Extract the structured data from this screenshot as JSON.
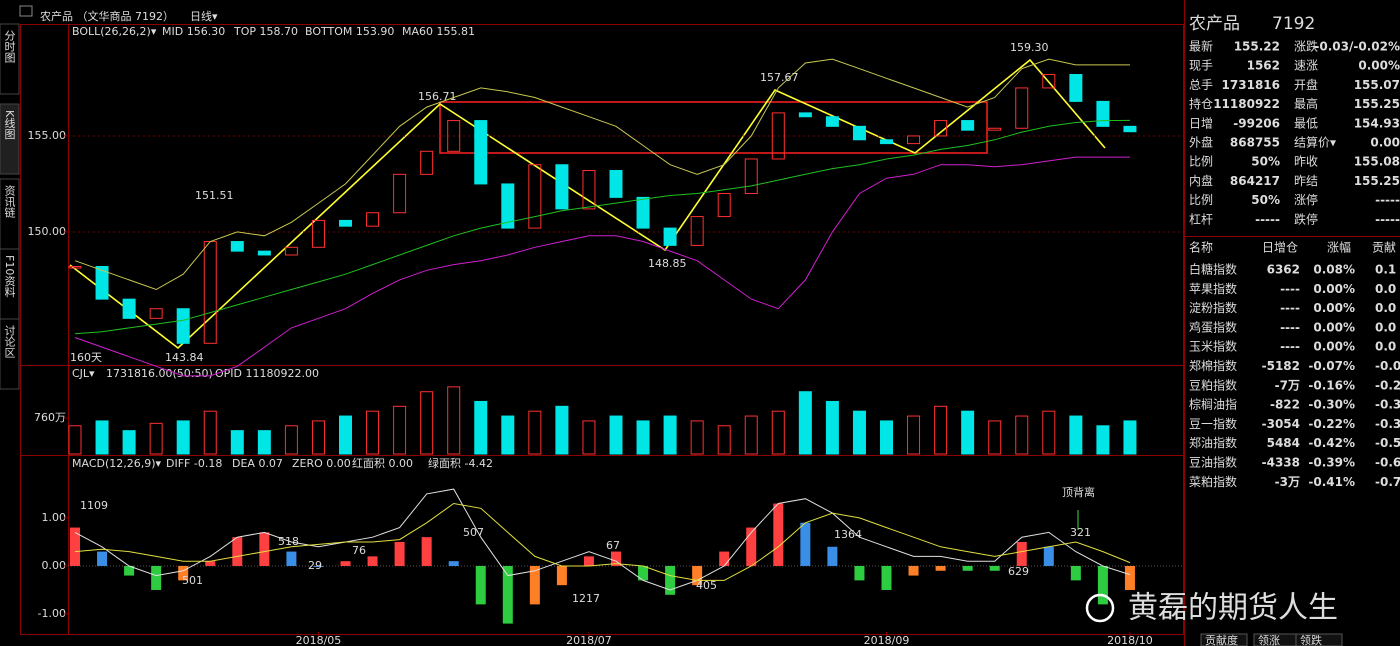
{
  "header": {
    "title": "农产品 （文华商品 7192）",
    "period": "日线▾"
  },
  "sidebar": [
    "分时图",
    "K线图",
    "资讯链",
    "F10资料",
    "讨论区"
  ],
  "chart_data": [
    {
      "type": "candlestick",
      "legend": [
        "BOLL(26,26,2)▾",
        "MID 156.30",
        "TOP 158.70",
        "BOTTOM 153.90",
        "MA60 155.81"
      ],
      "up_color": "#ff3030",
      "down_color": "#00e5e5",
      "values": [
        148.2,
        146.5,
        145.5,
        146.0,
        144.2,
        149.5,
        149.0,
        148.8,
        149.2,
        150.6,
        150.3,
        151.0,
        153.0,
        154.2,
        155.8,
        152.5,
        150.2,
        153.5,
        151.2,
        153.2,
        151.8,
        150.2,
        149.3,
        150.8,
        152.0,
        153.8,
        156.2,
        156.0,
        155.5,
        154.8,
        154.6,
        155.0,
        155.8,
        155.3,
        155.4,
        157.5,
        158.2,
        156.8,
        155.5,
        155.22
      ],
      "series": [
        {
          "color": "#c8c850",
          "values": [
            148.5,
            148.0,
            147.5,
            147.0,
            147.8,
            149.5,
            150.0,
            149.8,
            150.5,
            151.5,
            152.5,
            154.0,
            155.5,
            156.5,
            157.0,
            157.5,
            157.3,
            157.0,
            156.5,
            156.0,
            155.5,
            154.5,
            153.5,
            153.0,
            153.5,
            155.0,
            157.5,
            158.8,
            159.0,
            158.5,
            158.0,
            157.5,
            157.0,
            156.5,
            157.0,
            158.5,
            159.0,
            158.7,
            158.7,
            158.7
          ]
        },
        {
          "color": "#d020d0",
          "values": [
            144.5,
            144.0,
            143.5,
            143.0,
            142.5,
            142.5,
            143.0,
            144.0,
            145.0,
            145.5,
            146.0,
            146.8,
            147.5,
            148.0,
            148.3,
            148.5,
            148.8,
            149.2,
            149.5,
            149.8,
            149.8,
            149.5,
            149.0,
            148.5,
            147.5,
            146.5,
            146.0,
            147.5,
            150.0,
            152.0,
            152.8,
            153.0,
            153.5,
            153.5,
            153.4,
            153.5,
            153.7,
            153.9,
            153.9,
            153.9
          ]
        },
        {
          "color": "#20c020",
          "values": [
            144.7,
            144.8,
            145.0,
            145.2,
            145.4,
            145.8,
            146.2,
            146.6,
            147.0,
            147.4,
            147.8,
            148.3,
            148.8,
            149.3,
            149.8,
            150.2,
            150.5,
            150.8,
            151.1,
            151.3,
            151.5,
            151.7,
            151.9,
            152.0,
            152.2,
            152.4,
            152.7,
            153.0,
            153.3,
            153.5,
            153.8,
            154.0,
            154.3,
            154.5,
            154.8,
            155.2,
            155.5,
            155.7,
            155.8,
            155.81
          ]
        }
      ],
      "annotations": [
        {
          "text": "156.71",
          "color": "#ff4040"
        },
        {
          "text": "151.51",
          "color": "#ff4040"
        },
        {
          "text": "157.67",
          "color": "#ff4040"
        },
        {
          "text": "159.30",
          "color": "#ff4040"
        },
        {
          "text": "143.84",
          "color": "#00e5e5"
        },
        {
          "text": "148.85",
          "color": "#00e5e5"
        },
        {
          "text": "160天",
          "color": "#ffff40"
        }
      ],
      "ylim": [
        143.07,
        160.83
      ],
      "yticks": [
        {
          "value": 155,
          "label": "155.00"
        },
        {
          "value": 150,
          "label": "150.00"
        }
      ],
      "grid": true
    },
    {
      "type": "bar",
      "legend": [
        "CJL▾",
        "1731816.00(50:50)",
        "OPID 11180922.00"
      ],
      "values": [
        600,
        700,
        500,
        650,
        700,
        900,
        500,
        500,
        600,
        700,
        800,
        900,
        1000,
        1300,
        1400,
        1100,
        800,
        900,
        1000,
        700,
        800,
        700,
        800,
        700,
        600,
        800,
        900,
        1300,
        1100,
        900,
        700,
        800,
        1000,
        900,
        700,
        800,
        900,
        800,
        600,
        700
      ],
      "ylim": [
        0,
        1828
      ],
      "yticks": [
        {
          "value": 760,
          "label": "760万"
        }
      ],
      "grid": false
    },
    {
      "type": "macd",
      "legend": [
        "MACD(12,26,9)▾",
        "DIFF -0.18",
        "DEA 0.07",
        "ZERO 0.00",
        "红面积 0.00",
        "绿面积 -4.42"
      ],
      "colors": {
        "up_rise": "#ff4040",
        "up_fall": "#3a8ee6",
        "down_fall": "#2ecc40",
        "down_rise": "#ff7f27"
      },
      "categories": [
        null,
        null,
        null,
        null,
        null,
        null,
        null,
        null,
        null,
        "2018/05",
        null,
        null,
        null,
        null,
        null,
        null,
        null,
        null,
        null,
        "2018/07",
        null,
        null,
        null,
        null,
        null,
        null,
        null,
        null,
        null,
        null,
        "2018/09",
        null,
        null,
        null,
        null,
        null,
        null,
        null,
        null,
        "2018/10"
      ],
      "values": [
        0.8,
        0.3,
        -0.2,
        -0.5,
        -0.3,
        0.1,
        0.6,
        0.7,
        0.3,
        0.0,
        0.1,
        0.2,
        0.5,
        0.6,
        0.1,
        -0.8,
        -1.2,
        -0.8,
        -0.4,
        0.2,
        0.3,
        -0.3,
        -0.6,
        -0.4,
        0.3,
        0.8,
        1.3,
        0.9,
        0.4,
        -0.3,
        -0.5,
        -0.2,
        -0.1,
        -0.1,
        -0.1,
        0.5,
        0.4,
        -0.3,
        -0.8,
        -0.5
      ],
      "series": [
        {
          "name": "DIFF",
          "color": "#e0e0e0",
          "values": [
            0.7,
            0.4,
            0.0,
            -0.2,
            -0.1,
            0.2,
            0.6,
            0.7,
            0.5,
            0.4,
            0.5,
            0.6,
            0.8,
            1.5,
            1.6,
            0.6,
            -0.2,
            -0.1,
            0.1,
            0.3,
            0.1,
            -0.3,
            -0.5,
            -0.3,
            0.0,
            0.7,
            1.3,
            1.4,
            1.1,
            0.6,
            0.4,
            0.2,
            0.2,
            0.1,
            0.1,
            0.6,
            0.7,
            0.3,
            0.0,
            -0.18
          ]
        },
        {
          "name": "DEA",
          "color": "#e0e040",
          "values": [
            0.3,
            0.35,
            0.3,
            0.2,
            0.1,
            0.1,
            0.2,
            0.3,
            0.4,
            0.45,
            0.5,
            0.5,
            0.55,
            0.9,
            1.3,
            1.2,
            0.7,
            0.2,
            0.0,
            0.0,
            0.05,
            0.0,
            -0.2,
            -0.3,
            -0.3,
            0.0,
            0.4,
            0.9,
            1.1,
            1.0,
            0.8,
            0.6,
            0.4,
            0.3,
            0.2,
            0.3,
            0.4,
            0.5,
            0.3,
            0.07
          ]
        }
      ],
      "annotations": [
        {
          "text": "1109",
          "color": "#e040e0"
        },
        {
          "text": "518",
          "color": "#e040e0"
        },
        {
          "text": "76",
          "color": "#e040e0"
        },
        {
          "text": "507",
          "color": "#e040e0"
        },
        {
          "text": "67",
          "color": "#e040e0"
        },
        {
          "text": "1364",
          "color": "#e040e0"
        },
        {
          "text": "321",
          "color": "#e040e0"
        },
        {
          "text": "501",
          "color": "#40e040"
        },
        {
          "text": "29",
          "color": "#40e040"
        },
        {
          "text": "1217",
          "color": "#40e040"
        },
        {
          "text": "405",
          "color": "#40e040"
        },
        {
          "text": "629",
          "color": "#40e040"
        },
        {
          "text": "顶背离",
          "color": "#40e040"
        }
      ],
      "ylim": [
        -1.375,
        2.29
      ],
      "yticks": [
        {
          "value": 1,
          "label": "1.00"
        },
        {
          "value": 0,
          "label": "0.00"
        },
        {
          "value": -1,
          "label": "-1.00"
        }
      ],
      "grid": false
    }
  ],
  "quote": {
    "name": "农产品",
    "code": "7192",
    "rows": [
      [
        "最新",
        "155.22",
        "涨跌",
        "-0.03/-0.02%"
      ],
      [
        "现手",
        "1562",
        "速涨",
        "0.00%"
      ],
      [
        "总手",
        "1731816",
        "开盘",
        "155.07"
      ],
      [
        "持仓",
        "11180922",
        "最高",
        "155.25"
      ],
      [
        "日增",
        "-99206",
        "最低",
        "154.93"
      ],
      [
        "外盘",
        "868755",
        "结算价▾",
        "0.00"
      ],
      [
        "比例",
        "50%",
        "昨收",
        "155.08"
      ],
      [
        "内盘",
        "864217",
        "昨结",
        "155.25"
      ],
      [
        "比例",
        "50%",
        "涨停",
        "-----"
      ],
      [
        "杠杆",
        "-----",
        "跌停",
        "-----"
      ]
    ]
  },
  "index_table": {
    "header": [
      "名称",
      "日增仓",
      "涨幅",
      "贡献"
    ],
    "rows": [
      [
        "白糖指数",
        "6362",
        "0.08%",
        "0.1"
      ],
      [
        "苹果指数",
        "----",
        "0.00%",
        "0.0"
      ],
      [
        "淀粉指数",
        "----",
        "0.00%",
        "0.0"
      ],
      [
        "鸡蛋指数",
        "----",
        "0.00%",
        "0.0"
      ],
      [
        "玉米指数",
        "----",
        "0.00%",
        "0.0"
      ],
      [
        "郑棉指数",
        "-5182",
        "-0.07%",
        "-0.0"
      ],
      [
        "豆粕指数",
        "-7万",
        "-0.16%",
        "-0.2"
      ],
      [
        "棕榈油指",
        "-822",
        "-0.30%",
        "-0.3"
      ],
      [
        "豆一指数",
        "-3054",
        "-0.22%",
        "-0.3"
      ],
      [
        "郑油指数",
        "5484",
        "-0.42%",
        "-0.5"
      ],
      [
        "豆油指数",
        "-4338",
        "-0.39%",
        "-0.6"
      ],
      [
        "菜粕指数",
        "-3万",
        "-0.41%",
        "-0.7"
      ]
    ]
  },
  "footer_tabs": [
    "贡献度",
    "领涨",
    "领跌"
  ],
  "watermark": "黄磊的期货人生"
}
